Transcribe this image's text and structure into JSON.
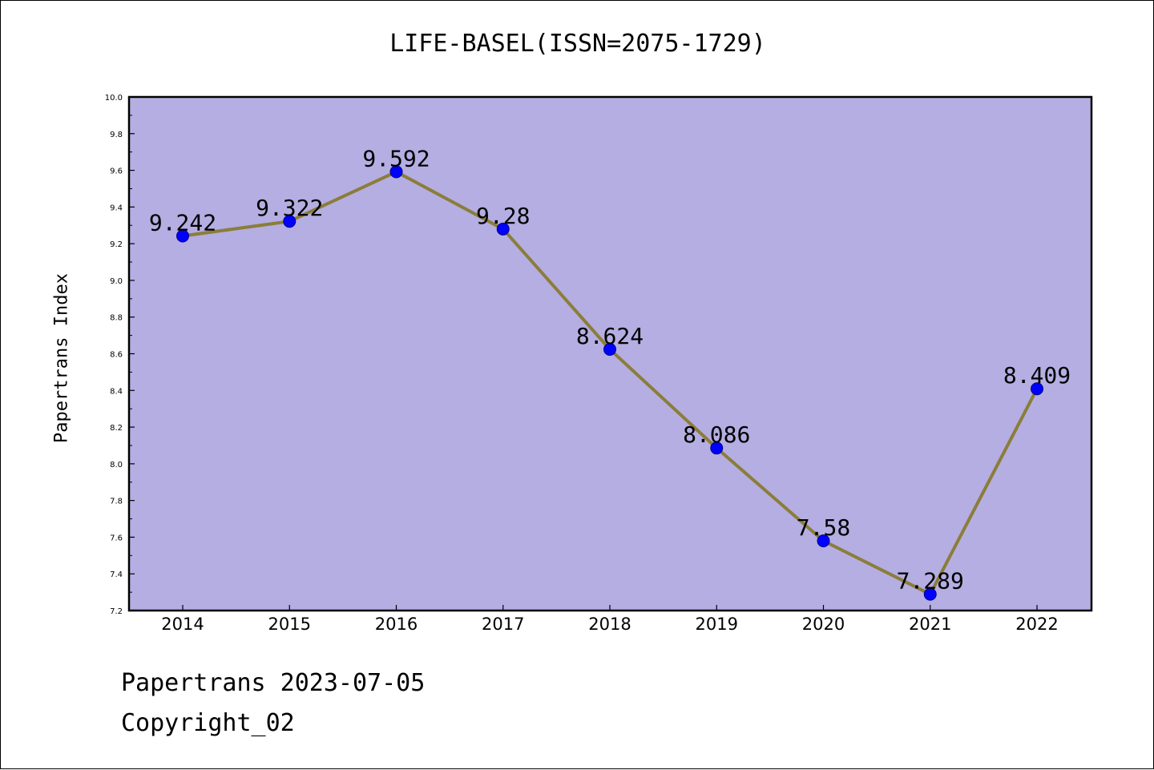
{
  "chart_data": {
    "type": "line",
    "title": "LIFE-BASEL(ISSN=2075-1729)",
    "xlabel": "",
    "ylabel": "Papertrans Index",
    "categories": [
      "2014",
      "2015",
      "2016",
      "2017",
      "2018",
      "2019",
      "2020",
      "2021",
      "2022"
    ],
    "series": [
      {
        "values": [
          9.242,
          9.322,
          9.592,
          9.28,
          8.624,
          8.086,
          7.58,
          7.289,
          8.409
        ],
        "labels": [
          "9.242",
          "9.322",
          "9.592",
          "9.28",
          "8.624",
          "8.086",
          "7.58",
          "7.289",
          "8.409"
        ]
      }
    ],
    "ylim": [
      7.2,
      10.0
    ],
    "yticks": [
      "7.2",
      "7.4",
      "7.6",
      "7.8",
      "8.0",
      "8.2",
      "8.4",
      "8.6",
      "8.8",
      "9.0",
      "9.2",
      "9.4",
      "9.6",
      "9.8",
      "10.0"
    ],
    "grid": false,
    "legend": "none",
    "colors": {
      "plot_background": "#b4aee2",
      "line": "#8b7d3a",
      "marker": "#0000ff",
      "axis": "#000000"
    }
  },
  "footer": {
    "source": "Papertrans 2023-07-05",
    "copyright": "Copyright_02"
  }
}
